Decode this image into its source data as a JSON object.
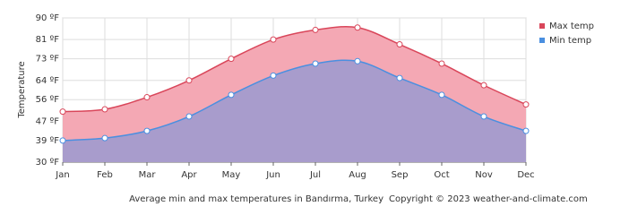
{
  "chart_data": {
    "type": "area",
    "y_label": "Temperature",
    "caption": "Average min and max temperatures in Bandırma, Turkey",
    "copyright": "Copyright © 2023  weather-and-climate.com",
    "categories": [
      "Jan",
      "Feb",
      "Mar",
      "Apr",
      "May",
      "Jun",
      "Jul",
      "Aug",
      "Sep",
      "Oct",
      "Nov",
      "Dec"
    ],
    "series": [
      {
        "name": "Max temp",
        "color": "#d9465a",
        "fill": "#f4a8b4",
        "values": [
          51,
          52,
          57,
          64,
          73,
          81,
          85,
          86,
          79,
          71,
          62,
          54
        ]
      },
      {
        "name": "Min temp",
        "color": "#4a8fe0",
        "fill": "#a89ccc",
        "values": [
          39,
          40,
          43,
          49,
          58,
          66,
          71,
          72,
          65,
          58,
          49,
          43
        ]
      }
    ],
    "ylim": [
      30,
      90
    ],
    "yticks": [
      {
        "value": 30,
        "label": "30 ºF"
      },
      {
        "value": 39,
        "label": "39 ºF"
      },
      {
        "value": 47,
        "label": "47 ºF"
      },
      {
        "value": 56,
        "label": "56 ºF"
      },
      {
        "value": 64,
        "label": "64 ºF"
      },
      {
        "value": 73,
        "label": "73 ºF"
      },
      {
        "value": 81,
        "label": "81 ºF"
      },
      {
        "value": 90,
        "label": "90 ºF"
      }
    ],
    "grid": true,
    "legend": "right"
  }
}
